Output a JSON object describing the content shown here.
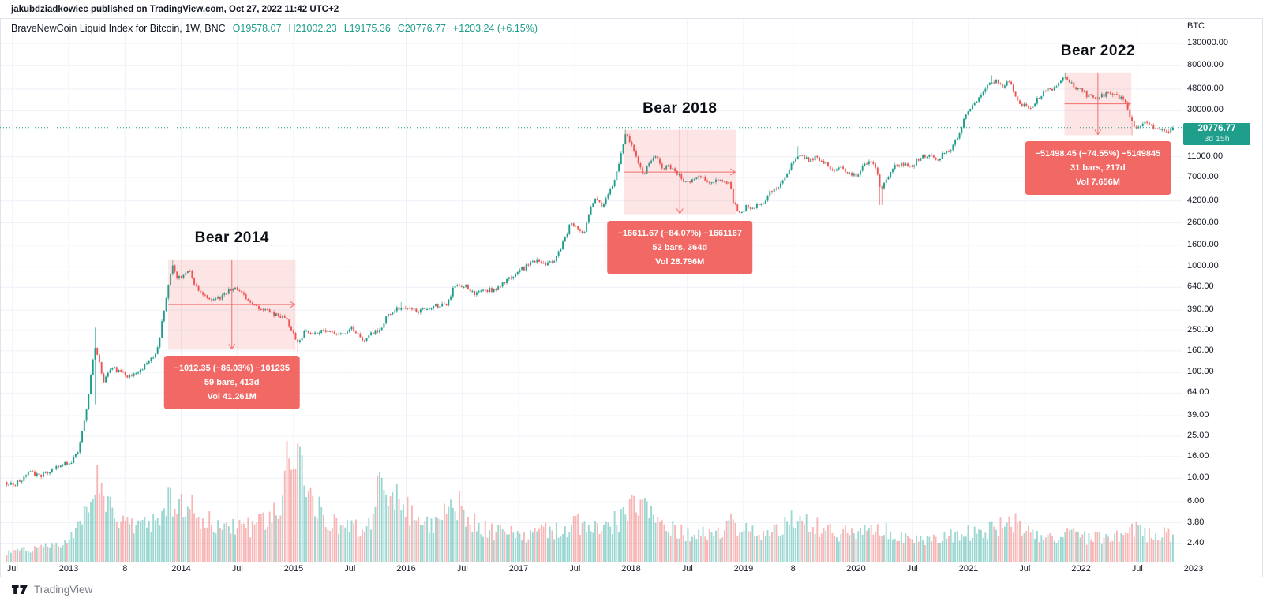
{
  "attribution": {
    "text": "jakubdziadkowiec published on TradingView.com, Oct 27, 2022 11:42 UTC+2"
  },
  "header": {
    "symbol_title": "BraveNewCoin Liquid Index for Bitcoin, 1W, BNC",
    "open": "O19578.07",
    "high": "H21002.23",
    "low": "L19175.36",
    "close": "C20776.77",
    "change": "+1203.24 (+6.15%)"
  },
  "price_axis": {
    "unit": "BTC",
    "ticks": [
      {
        "label": "130000.00",
        "price": 130000
      },
      {
        "label": "80000.00",
        "price": 80000
      },
      {
        "label": "48000.00",
        "price": 48000
      },
      {
        "label": "30000.00",
        "price": 30000
      },
      {
        "label": "11000.00",
        "price": 11000
      },
      {
        "label": "7000.00",
        "price": 7000
      },
      {
        "label": "4200.00",
        "price": 4200
      },
      {
        "label": "2600.00",
        "price": 2600
      },
      {
        "label": "1600.00",
        "price": 1600
      },
      {
        "label": "1000.00",
        "price": 1000
      },
      {
        "label": "640.00",
        "price": 640
      },
      {
        "label": "390.00",
        "price": 390
      },
      {
        "label": "250.00",
        "price": 250
      },
      {
        "label": "160.00",
        "price": 160
      },
      {
        "label": "100.00",
        "price": 100
      },
      {
        "label": "64.00",
        "price": 64
      },
      {
        "label": "39.00",
        "price": 39
      },
      {
        "label": "25.00",
        "price": 25
      },
      {
        "label": "16.00",
        "price": 16
      },
      {
        "label": "10.00",
        "price": 10
      },
      {
        "label": "6.00",
        "price": 6
      },
      {
        "label": "3.80",
        "price": 3.8
      },
      {
        "label": "2.40",
        "price": 2.4
      }
    ]
  },
  "time_axis": {
    "ticks": [
      {
        "label": "Jul",
        "t": 2012.5
      },
      {
        "label": "2013",
        "t": 2013.0
      },
      {
        "label": "8",
        "t": 2013.5
      },
      {
        "label": "2014",
        "t": 2014.0
      },
      {
        "label": "Jul",
        "t": 2014.5
      },
      {
        "label": "2015",
        "t": 2015.0
      },
      {
        "label": "Jul",
        "t": 2015.5
      },
      {
        "label": "2016",
        "t": 2016.0
      },
      {
        "label": "Jul",
        "t": 2016.5
      },
      {
        "label": "2017",
        "t": 2017.0
      },
      {
        "label": "Jul",
        "t": 2017.5
      },
      {
        "label": "2018",
        "t": 2018.0
      },
      {
        "label": "Jul",
        "t": 2018.5
      },
      {
        "label": "2019",
        "t": 2019.0
      },
      {
        "label": "8",
        "t": 2019.44
      },
      {
        "label": "2020",
        "t": 2020.0
      },
      {
        "label": "Jul",
        "t": 2020.5
      },
      {
        "label": "2021",
        "t": 2021.0
      },
      {
        "label": "Jul",
        "t": 2021.5
      },
      {
        "label": "2022",
        "t": 2022.0
      },
      {
        "label": "Jul",
        "t": 2022.5
      },
      {
        "label": "2023",
        "t": 2023.0
      }
    ]
  },
  "price_line": {
    "price_label": "20776.77",
    "countdown": "3d 15h",
    "price": 20776.77
  },
  "footer": {
    "logo_text": "TradingView"
  },
  "colors": {
    "up": "#1f9d8b",
    "down": "#ef5350",
    "volume_up": "rgba(38,166,154,0.45)",
    "volume_down": "rgba(239,83,80,0.42)",
    "measure_fill": "rgba(239,83,80,0.15)",
    "measure_line": "rgba(239,83,80,0.8)",
    "label_bg": "#ef5350",
    "badge_bg": "#1e9e8b",
    "grid": "#eef1f8",
    "frame": "#e0e3eb",
    "price_line": "#1f9d8b",
    "value_text": "#1e9e8b"
  },
  "chart_data": {
    "type": "candlestick",
    "title": "BraveNewCoin Liquid Index for Bitcoin, weekly, log scale",
    "x_range": [
      2012.43,
      2023.0
    ],
    "y_range_prices": [
      2.4,
      130000
    ],
    "scale": "log",
    "grid": true,
    "measurements": [
      {
        "name": "bear-2014",
        "title": "Bear 2014",
        "t_start": 2013.885,
        "t_end": 2015.017,
        "price_start": 1176.7,
        "price_end": 164.4,
        "label_change": "−1012.35 (−86.03%) −101235",
        "label_bars": "59 bars, 413d",
        "label_volume": "Vol 41.261M"
      },
      {
        "name": "bear-2018",
        "title": "Bear 2018",
        "t_start": 2017.935,
        "t_end": 2018.932,
        "price_start": 19759.3,
        "price_end": 3147.6,
        "label_change": "−16611.67 (−84.07%) −1661167",
        "label_bars": "52 bars, 364d",
        "label_volume": "Vol 28.796M"
      },
      {
        "name": "bear-2022",
        "title": "Bear 2022",
        "t_start": 2021.853,
        "t_end": 2022.447,
        "price_start": 69078.0,
        "price_end": 17580.0,
        "label_change": "−51498.45 (−74.55%) −5149845",
        "label_bars": "31 bars, 217d",
        "label_volume": "Vol 7.656M"
      }
    ],
    "price_anchors": [
      [
        2012.43,
        9.2
      ],
      [
        2012.5,
        8.6
      ],
      [
        2012.58,
        9.8
      ],
      [
        2012.66,
        11.5
      ],
      [
        2012.74,
        10.2
      ],
      [
        2012.84,
        11.8
      ],
      [
        2012.92,
        13.4
      ],
      [
        2013.0,
        13.6
      ],
      [
        2013.08,
        17
      ],
      [
        2013.16,
        47
      ],
      [
        2013.23,
        180
      ],
      [
        2013.27,
        130
      ],
      [
        2013.31,
        80
      ],
      [
        2013.38,
        112
      ],
      [
        2013.46,
        100
      ],
      [
        2013.54,
        92
      ],
      [
        2013.62,
        104
      ],
      [
        2013.71,
        123
      ],
      [
        2013.79,
        165
      ],
      [
        2013.86,
        480
      ],
      [
        2013.92,
        1080
      ],
      [
        2013.97,
        760
      ],
      [
        2014.02,
        830
      ],
      [
        2014.07,
        920
      ],
      [
        2014.13,
        640
      ],
      [
        2014.19,
        560
      ],
      [
        2014.27,
        465
      ],
      [
        2014.35,
        510
      ],
      [
        2014.44,
        625
      ],
      [
        2014.52,
        590
      ],
      [
        2014.6,
        490
      ],
      [
        2014.69,
        415
      ],
      [
        2014.78,
        375
      ],
      [
        2014.86,
        350
      ],
      [
        2014.93,
        325
      ],
      [
        2014.99,
        235
      ],
      [
        2015.04,
        190
      ],
      [
        2015.1,
        245
      ],
      [
        2015.18,
        235
      ],
      [
        2015.27,
        245
      ],
      [
        2015.35,
        237
      ],
      [
        2015.44,
        240
      ],
      [
        2015.52,
        265
      ],
      [
        2015.62,
        205
      ],
      [
        2015.7,
        238
      ],
      [
        2015.78,
        262
      ],
      [
        2015.83,
        350
      ],
      [
        2015.89,
        375
      ],
      [
        2015.95,
        420
      ],
      [
        2016.02,
        395
      ],
      [
        2016.1,
        378
      ],
      [
        2016.19,
        415
      ],
      [
        2016.28,
        425
      ],
      [
        2016.36,
        455
      ],
      [
        2016.44,
        690
      ],
      [
        2016.52,
        660
      ],
      [
        2016.6,
        560
      ],
      [
        2016.69,
        590
      ],
      [
        2016.78,
        615
      ],
      [
        2016.86,
        700
      ],
      [
        2016.94,
        790
      ],
      [
        2017.02,
        930
      ],
      [
        2017.1,
        1060
      ],
      [
        2017.17,
        1190
      ],
      [
        2017.23,
        1020
      ],
      [
        2017.31,
        1150
      ],
      [
        2017.39,
        1650
      ],
      [
        2017.46,
        2550
      ],
      [
        2017.52,
        2400
      ],
      [
        2017.58,
        2100
      ],
      [
        2017.65,
        3900
      ],
      [
        2017.7,
        4450
      ],
      [
        2017.74,
        3600
      ],
      [
        2017.8,
        4900
      ],
      [
        2017.86,
        6800
      ],
      [
        2017.92,
        13500
      ],
      [
        2017.95,
        18500
      ],
      [
        2018.0,
        14300
      ],
      [
        2018.05,
        10500
      ],
      [
        2018.11,
        7300
      ],
      [
        2018.16,
        9500
      ],
      [
        2018.22,
        10800
      ],
      [
        2018.29,
        8300
      ],
      [
        2018.34,
        9100
      ],
      [
        2018.41,
        7600
      ],
      [
        2018.48,
        6400
      ],
      [
        2018.55,
        6700
      ],
      [
        2018.61,
        7350
      ],
      [
        2018.68,
        6350
      ],
      [
        2018.75,
        6600
      ],
      [
        2018.82,
        6450
      ],
      [
        2018.87,
        6300
      ],
      [
        2018.91,
        4100
      ],
      [
        2018.96,
        3300
      ],
      [
        2019.02,
        3650
      ],
      [
        2019.09,
        3620
      ],
      [
        2019.16,
        3950
      ],
      [
        2019.24,
        5150
      ],
      [
        2019.32,
        5700
      ],
      [
        2019.4,
        8100
      ],
      [
        2019.48,
        11600
      ],
      [
        2019.53,
        11200
      ],
      [
        2019.58,
        9900
      ],
      [
        2019.65,
        10900
      ],
      [
        2019.72,
        9800
      ],
      [
        2019.79,
        8300
      ],
      [
        2019.86,
        8900
      ],
      [
        2019.93,
        7400
      ],
      [
        2020.0,
        7250
      ],
      [
        2020.07,
        9300
      ],
      [
        2020.13,
        10100
      ],
      [
        2020.18,
        8200
      ],
      [
        2020.22,
        5400
      ],
      [
        2020.28,
        6750
      ],
      [
        2020.35,
        9100
      ],
      [
        2020.43,
        9450
      ],
      [
        2020.5,
        9150
      ],
      [
        2020.57,
        10900
      ],
      [
        2020.64,
        11600
      ],
      [
        2020.71,
        10300
      ],
      [
        2020.78,
        11700
      ],
      [
        2020.85,
        13600
      ],
      [
        2020.91,
        17800
      ],
      [
        2020.97,
        26500
      ],
      [
        2021.03,
        34000
      ],
      [
        2021.09,
        39000
      ],
      [
        2021.15,
        49000
      ],
      [
        2021.21,
        57500
      ],
      [
        2021.26,
        55000
      ],
      [
        2021.31,
        49500
      ],
      [
        2021.36,
        57000
      ],
      [
        2021.41,
        43000
      ],
      [
        2021.46,
        35500
      ],
      [
        2021.52,
        32500
      ],
      [
        2021.58,
        34000
      ],
      [
        2021.64,
        42000
      ],
      [
        2021.7,
        47500
      ],
      [
        2021.76,
        48500
      ],
      [
        2021.81,
        57000
      ],
      [
        2021.86,
        63500
      ],
      [
        2021.9,
        58000
      ],
      [
        2021.95,
        50500
      ],
      [
        2022.0,
        46500
      ],
      [
        2022.06,
        41500
      ],
      [
        2022.12,
        39000
      ],
      [
        2022.18,
        41000
      ],
      [
        2022.24,
        45000
      ],
      [
        2022.3,
        42500
      ],
      [
        2022.36,
        39500
      ],
      [
        2022.41,
        33000
      ],
      [
        2022.45,
        23500
      ],
      [
        2022.49,
        20000
      ],
      [
        2022.53,
        21500
      ],
      [
        2022.58,
        23800
      ],
      [
        2022.63,
        21000
      ],
      [
        2022.68,
        19800
      ],
      [
        2022.73,
        19300
      ],
      [
        2022.78,
        19600
      ],
      [
        2022.825,
        20776.77
      ]
    ],
    "wick_events": [
      {
        "t": 2013.23,
        "high": 266,
        "low": 50
      },
      {
        "t": 2013.92,
        "high": 1163
      },
      {
        "t": 2015.04,
        "low": 152
      },
      {
        "t": 2015.95,
        "high": 465
      },
      {
        "t": 2016.44,
        "high": 780
      },
      {
        "t": 2017.95,
        "high": 19850
      },
      {
        "t": 2019.48,
        "high": 13850
      },
      {
        "t": 2020.22,
        "low": 3850
      },
      {
        "t": 2021.21,
        "high": 64850
      },
      {
        "t": 2021.86,
        "high": 69000
      },
      {
        "t": 2022.45,
        "low": 17600
      }
    ],
    "volume_profile_relative": [
      [
        2012.43,
        14
      ],
      [
        2012.7,
        18
      ],
      [
        2012.95,
        24
      ],
      [
        2013.08,
        50
      ],
      [
        2013.18,
        100
      ],
      [
        2013.25,
        115
      ],
      [
        2013.33,
        95
      ],
      [
        2013.45,
        55
      ],
      [
        2013.6,
        45
      ],
      [
        2013.75,
        55
      ],
      [
        2013.88,
        80
      ],
      [
        2013.95,
        100
      ],
      [
        2014.05,
        85
      ],
      [
        2014.2,
        60
      ],
      [
        2014.35,
        48
      ],
      [
        2014.5,
        52
      ],
      [
        2014.65,
        50
      ],
      [
        2014.8,
        62
      ],
      [
        2014.9,
        85
      ],
      [
        2014.97,
        175
      ],
      [
        2015.05,
        130
      ],
      [
        2015.15,
        90
      ],
      [
        2015.3,
        65
      ],
      [
        2015.45,
        48
      ],
      [
        2015.6,
        52
      ],
      [
        2015.7,
        60
      ],
      [
        2015.78,
        140
      ],
      [
        2015.85,
        95
      ],
      [
        2015.95,
        85
      ],
      [
        2016.1,
        55
      ],
      [
        2016.25,
        48
      ],
      [
        2016.44,
        90
      ],
      [
        2016.55,
        60
      ],
      [
        2016.7,
        45
      ],
      [
        2016.85,
        42
      ],
      [
        2017.0,
        38
      ],
      [
        2017.2,
        42
      ],
      [
        2017.4,
        50
      ],
      [
        2017.6,
        58
      ],
      [
        2017.8,
        52
      ],
      [
        2017.95,
        65
      ],
      [
        2018.05,
        80
      ],
      [
        2018.2,
        62
      ],
      [
        2018.35,
        52
      ],
      [
        2018.5,
        42
      ],
      [
        2018.7,
        38
      ],
      [
        2018.92,
        58
      ],
      [
        2019.05,
        40
      ],
      [
        2019.25,
        42
      ],
      [
        2019.48,
        65
      ],
      [
        2019.6,
        52
      ],
      [
        2019.8,
        42
      ],
      [
        2020.0,
        38
      ],
      [
        2020.22,
        52
      ],
      [
        2020.4,
        36
      ],
      [
        2020.6,
        32
      ],
      [
        2020.8,
        34
      ],
      [
        2021.0,
        42
      ],
      [
        2021.2,
        48
      ],
      [
        2021.41,
        58
      ],
      [
        2021.6,
        34
      ],
      [
        2021.8,
        36
      ],
      [
        2021.95,
        38
      ],
      [
        2022.1,
        34
      ],
      [
        2022.3,
        32
      ],
      [
        2022.45,
        52
      ],
      [
        2022.6,
        38
      ],
      [
        2022.75,
        42
      ],
      [
        2022.825,
        30
      ]
    ],
    "last_close": 20776.77,
    "last_open": 19578.07
  }
}
